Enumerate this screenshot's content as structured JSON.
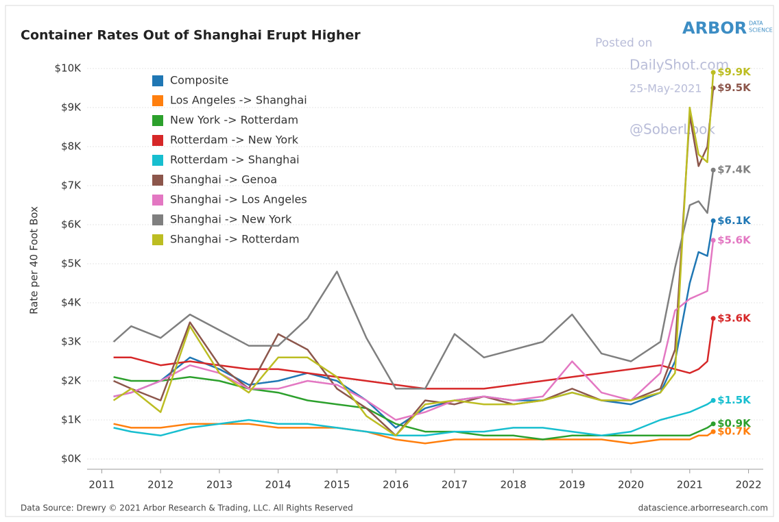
{
  "chart_data": {
    "type": "line",
    "title": "Container Rates Out of Shanghai Erupt Higher",
    "ylabel": "Rate per 40 Foot Box",
    "source": "Data Source: Drewry © 2021 Arbor Research & Trading, LLC. All Rights Reserved",
    "site": "datascience.arborresearch.com",
    "logo": "ARBOR",
    "logo_sub": [
      "DATA",
      "SCIENCE"
    ],
    "watermark": [
      "Posted on",
      "DailyShot.com",
      "25-May-2021",
      "@SoberLook"
    ],
    "legend": "upper left",
    "grid": true,
    "xlim": [
      2010.75,
      2022.25
    ],
    "xticks": [
      2011,
      2012,
      2013,
      2014,
      2015,
      2016,
      2017,
      2018,
      2019,
      2020,
      2021,
      2022
    ],
    "ylim": [
      0,
      10000
    ],
    "yticks": [
      {
        "value": 0,
        "label": "$0K"
      },
      {
        "value": 1000,
        "label": "$1K"
      },
      {
        "value": 2000,
        "label": "$2K"
      },
      {
        "value": 3000,
        "label": "$3K"
      },
      {
        "value": 4000,
        "label": "$4K"
      },
      {
        "value": 5000,
        "label": "$5K"
      },
      {
        "value": 6000,
        "label": "$6K"
      },
      {
        "value": 7000,
        "label": "$7K"
      },
      {
        "value": 8000,
        "label": "$8K"
      },
      {
        "value": 9000,
        "label": "$9K"
      },
      {
        "value": 10000,
        "label": "$10K"
      }
    ],
    "x": [
      2011.2,
      2011.5,
      2012,
      2012.5,
      2013,
      2013.5,
      2014,
      2014.5,
      2015,
      2015.5,
      2016,
      2016.5,
      2017,
      2017.5,
      2018,
      2018.5,
      2019,
      2019.5,
      2020,
      2020.5,
      2020.75,
      2021,
      2021.15,
      2021.3,
      2021.4
    ],
    "series": [
      {
        "name": "Composite",
        "color": "#1f77b4",
        "values": [
          1600,
          1700,
          2000,
          2600,
          2300,
          1900,
          2000,
          2200,
          2000,
          1500,
          800,
          1300,
          1500,
          1600,
          1500,
          1500,
          1700,
          1500,
          1400,
          1700,
          2500,
          4500,
          5300,
          5200,
          6100
        ],
        "value_labels": [
          null,
          null,
          null,
          null,
          null,
          null,
          null,
          null,
          null,
          null,
          null,
          null,
          null,
          null,
          null,
          null,
          null,
          null,
          null,
          null,
          null,
          null,
          null,
          null,
          "$6.1K"
        ]
      },
      {
        "name": "Los Angeles -> Shanghai",
        "color": "#ff7f0e",
        "values": [
          900,
          800,
          800,
          900,
          900,
          900,
          800,
          800,
          800,
          700,
          500,
          400,
          500,
          500,
          500,
          500,
          500,
          500,
          400,
          500,
          500,
          500,
          600,
          600,
          700
        ],
        "value_labels": [
          null,
          null,
          null,
          null,
          null,
          null,
          null,
          null,
          null,
          null,
          null,
          null,
          null,
          null,
          null,
          null,
          null,
          null,
          null,
          null,
          null,
          null,
          null,
          null,
          "$0.7K"
        ]
      },
      {
        "name": "New York -> Rotterdam",
        "color": "#2ca02c",
        "values": [
          2100,
          2000,
          2000,
          2100,
          2000,
          1800,
          1700,
          1500,
          1400,
          1300,
          900,
          700,
          700,
          600,
          600,
          500,
          600,
          600,
          600,
          600,
          600,
          600,
          700,
          800,
          900
        ],
        "value_labels": [
          null,
          null,
          null,
          null,
          null,
          null,
          null,
          null,
          null,
          null,
          null,
          null,
          null,
          null,
          null,
          null,
          null,
          null,
          null,
          null,
          null,
          null,
          null,
          null,
          "$0.9K"
        ]
      },
      {
        "name": "Rotterdam -> New York",
        "color": "#d62728",
        "values": [
          2600,
          2600,
          2400,
          2500,
          2400,
          2300,
          2300,
          2200,
          2100,
          2000,
          1900,
          1800,
          1800,
          1800,
          1900,
          2000,
          2100,
          2200,
          2300,
          2400,
          2300,
          2200,
          2300,
          2500,
          3600
        ],
        "value_labels": [
          null,
          null,
          null,
          null,
          null,
          null,
          null,
          null,
          null,
          null,
          null,
          null,
          null,
          null,
          null,
          null,
          null,
          null,
          null,
          null,
          null,
          null,
          null,
          null,
          "$3.6K"
        ]
      },
      {
        "name": "Rotterdam -> Shanghai",
        "color": "#17becf",
        "values": [
          800,
          700,
          600,
          800,
          900,
          1000,
          900,
          900,
          800,
          700,
          600,
          600,
          700,
          700,
          800,
          800,
          700,
          600,
          700,
          1000,
          1100,
          1200,
          1300,
          1400,
          1500
        ],
        "value_labels": [
          null,
          null,
          null,
          null,
          null,
          null,
          null,
          null,
          null,
          null,
          null,
          null,
          null,
          null,
          null,
          null,
          null,
          null,
          null,
          null,
          null,
          null,
          null,
          null,
          "$1.5K"
        ]
      },
      {
        "name": "Shanghai -> Genoa",
        "color": "#8c564b",
        "values": [
          2000,
          1800,
          1500,
          3500,
          2400,
          1800,
          3200,
          2800,
          1800,
          1300,
          600,
          1500,
          1400,
          1600,
          1400,
          1500,
          1800,
          1500,
          1500,
          1800,
          2800,
          8800,
          7500,
          8000,
          9500
        ],
        "value_labels": [
          null,
          null,
          null,
          null,
          null,
          null,
          null,
          null,
          null,
          null,
          null,
          null,
          null,
          null,
          null,
          null,
          null,
          null,
          null,
          null,
          null,
          null,
          null,
          null,
          "$9.5K"
        ]
      },
      {
        "name": "Shanghai -> Los Angeles",
        "color": "#e377c2",
        "values": [
          1600,
          1700,
          2000,
          2400,
          2200,
          1800,
          1800,
          2000,
          1900,
          1500,
          1000,
          1200,
          1500,
          1600,
          1500,
          1600,
          2500,
          1700,
          1500,
          2200,
          3800,
          4100,
          4200,
          4300,
          5600
        ],
        "value_labels": [
          null,
          null,
          null,
          null,
          null,
          null,
          null,
          null,
          null,
          null,
          null,
          null,
          null,
          null,
          null,
          null,
          null,
          null,
          null,
          null,
          null,
          null,
          null,
          null,
          "$5.6K"
        ]
      },
      {
        "name": "Shanghai -> New York",
        "color": "#7f7f7f",
        "values": [
          3000,
          3400,
          3100,
          3700,
          3300,
          2900,
          2900,
          3600,
          4800,
          3100,
          1800,
          1800,
          3200,
          2600,
          2800,
          3000,
          3700,
          2700,
          2500,
          3000,
          4900,
          6500,
          6600,
          6300,
          7400
        ],
        "value_labels": [
          null,
          null,
          null,
          null,
          null,
          null,
          null,
          null,
          null,
          null,
          null,
          null,
          null,
          null,
          null,
          null,
          null,
          null,
          null,
          null,
          null,
          null,
          null,
          null,
          "$7.4K"
        ]
      },
      {
        "name": "Shanghai -> Rotterdam",
        "color": "#bcbd22",
        "values": [
          1500,
          1800,
          1200,
          3400,
          2200,
          1700,
          2600,
          2600,
          2100,
          1100,
          600,
          1400,
          1500,
          1400,
          1400,
          1500,
          1700,
          1500,
          1500,
          1700,
          2200,
          9000,
          7800,
          7600,
          9900
        ],
        "value_labels": [
          null,
          null,
          null,
          null,
          null,
          null,
          null,
          null,
          null,
          null,
          null,
          null,
          null,
          null,
          null,
          null,
          null,
          null,
          null,
          null,
          null,
          null,
          null,
          null,
          "$9.9K"
        ]
      }
    ]
  }
}
